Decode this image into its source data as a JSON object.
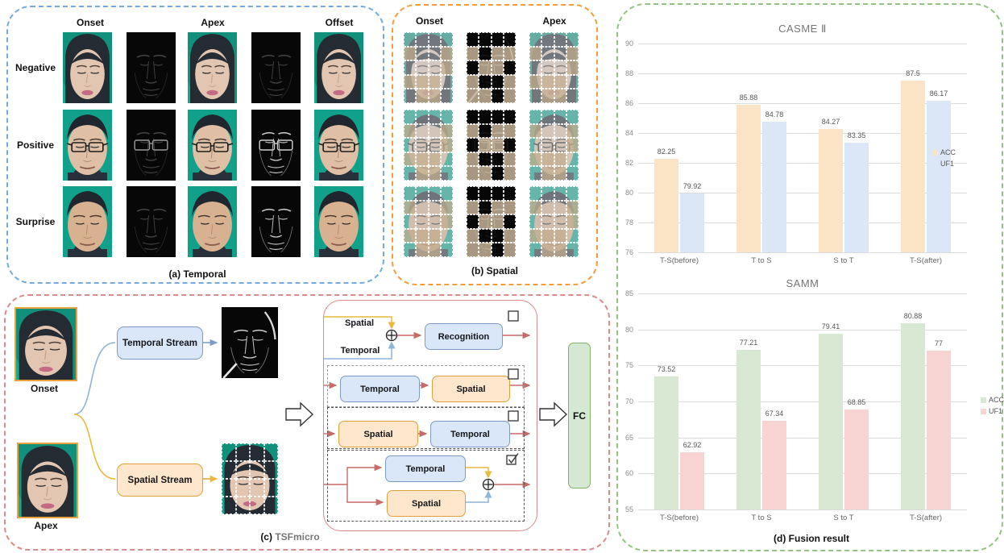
{
  "colors": {
    "panel_a_border": "#74aae0",
    "panel_b_border": "#f59d3d",
    "panel_c_border": "#d98c8c",
    "panel_d_border": "#92c47f",
    "temporal_box_fill": "#d9e7f9",
    "temporal_box_border": "#7c9cc6",
    "spatial_box_fill": "#ffe7cd",
    "spatial_box_border": "#dfa13c",
    "fc_fill": "#d5e8d4",
    "fc_border": "#82b366",
    "flow_arrow": "#c86a66"
  },
  "panel_a": {
    "caption": "(a) Temporal",
    "col_headers": [
      "Onset",
      "Apex",
      "Offset"
    ],
    "row_labels": [
      "Negative",
      "Positive",
      "Surprise"
    ]
  },
  "panel_b": {
    "caption": "(b) Spatial",
    "col_headers": [
      "Onset",
      "Apex"
    ]
  },
  "panel_c": {
    "caption_prefix": "(c)",
    "caption_name": "TSFmicro",
    "input_labels": [
      "Onset",
      "Apex"
    ],
    "stream_boxes": [
      "Temporal Stream",
      "Spatial Stream"
    ],
    "fusion_rows": [
      {
        "style": "sum-then-box",
        "line_labels": [
          "Spatial",
          "Temporal"
        ],
        "box": "Recognition",
        "checked": false
      },
      {
        "style": "serial",
        "boxes": [
          "Temporal",
          "Spatial"
        ],
        "checked": false
      },
      {
        "style": "serial",
        "boxes": [
          "Spatial",
          "Temporal"
        ],
        "checked": false
      },
      {
        "style": "parallel-sum",
        "boxes": [
          "Temporal",
          "Spatial"
        ],
        "checked": true
      }
    ],
    "fc_label": "FC"
  },
  "panel_d": {
    "caption": "(d) Fusion result"
  },
  "chart_data": [
    {
      "type": "bar",
      "title": "CASME Ⅱ",
      "categories": [
        "T-S(before)",
        "T to S",
        "S to T",
        "T-S(after)"
      ],
      "series": [
        {
          "name": "ACC",
          "color": "#fbe3c6",
          "values": [
            82.25,
            85.88,
            84.27,
            87.5
          ]
        },
        {
          "name": "UF1",
          "color": "#dbe6f6",
          "values": [
            79.92,
            84.78,
            83.35,
            86.17
          ]
        }
      ],
      "ylim": [
        76,
        90
      ],
      "ytick_step": 2,
      "grid": true,
      "legend_position": "right"
    },
    {
      "type": "bar",
      "title": "SAMM",
      "categories": [
        "T-S(before)",
        "T to S",
        "S to T",
        "T-S(after)"
      ],
      "series": [
        {
          "name": "ACC",
          "color": "#d8e8d2",
          "values": [
            73.52,
            77.21,
            79.41,
            80.88
          ]
        },
        {
          "name": "UF1",
          "color": "#f7d4d2",
          "values": [
            62.92,
            67.34,
            68.85,
            77
          ]
        }
      ],
      "ylim": [
        55,
        85
      ],
      "ytick_step": 5,
      "grid": true,
      "legend_position": "right"
    }
  ]
}
